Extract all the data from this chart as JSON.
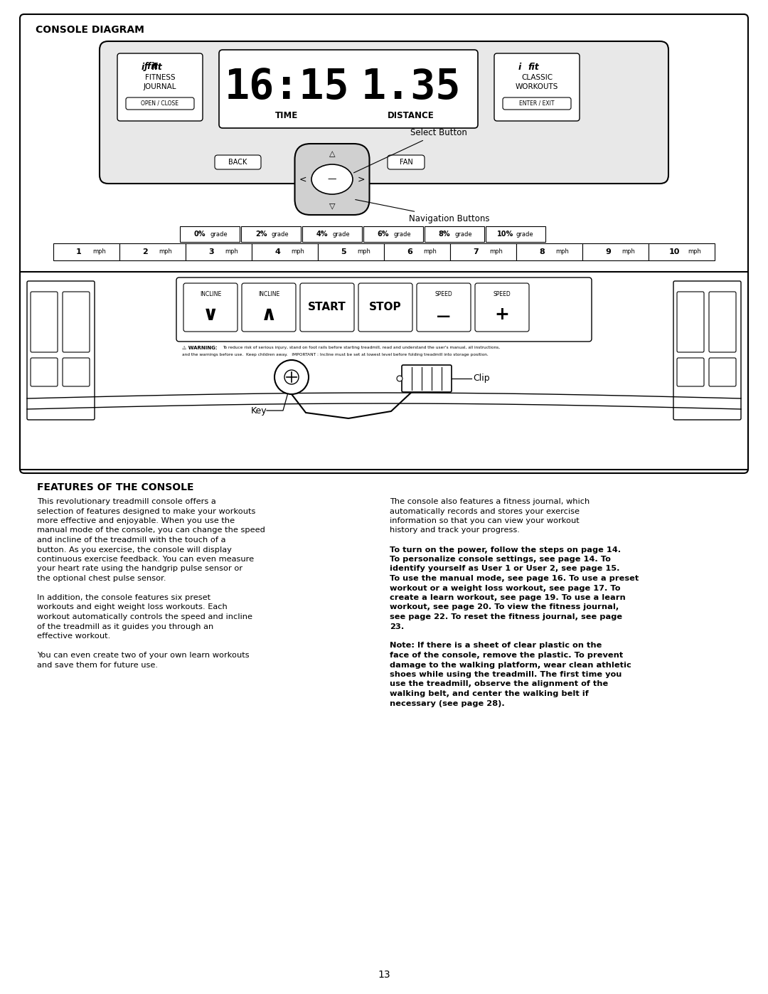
{
  "page_title": "CONSOLE DIAGRAM",
  "section_title": "FEATURES OF THE CONSOLE",
  "left_col_p1": "This revolutionary treadmill console offers a selection of features designed to make your workouts more effective and enjoyable. When you use the manual mode of the console, you can change the speed and incline of the treadmill with the touch of a button. As you exercise, the console will display continuous exercise feedback. You can even measure your heart rate using the handgrip pulse sensor or the optional chest pulse sensor.",
  "left_col_p2": "In addition, the console features six preset workouts and eight weight loss workouts. Each workout automatically controls the speed and incline of the treadmill as it guides you through an effective workout.",
  "left_col_p3": "You can even create two of your own learn workouts and save them for future use.",
  "right_col_p1": "The console also features a fitness journal, which automatically records and stores your exercise information so that you can view your workout history and track your progress.",
  "right_col_p2_bold_intro": "To turn on the power,",
  "right_col_p2_rest": " follow the steps on page 14. To personalize console settings, see page 14. To identify yourself as User 1 or User 2, see page 15. To use the manual mode, see page 16. To use a preset workout or a weight loss workout, see page 17. To create a learn workout, see page 19. To use a learn workout, see page 20. To view the fitness journal, see page 22. To reset the fitness journal, see page 23.",
  "right_col_note": "Note: If there is a sheet of clear plastic on the face of the console, remove the plastic. To prevent damage to the walking platform, wear clean athletic shoes while using the treadmill. The first time you use the treadmill, observe the alignment of the walking belt, and center the walking belt if necessary (see page 28).",
  "page_number": "13",
  "grade_buttons": [
    "0% grade",
    "2% grade",
    "4% grade",
    "6% grade",
    "8% grade",
    "10% grade"
  ],
  "speed_buttons": [
    "1",
    "2",
    "3",
    "4",
    "5",
    "6",
    "7",
    "8",
    "9",
    "10"
  ],
  "bg_color": "#ffffff",
  "text_color": "#000000",
  "diagram_bg": "#f5f5f5",
  "console_bg": "#e8e8e8"
}
